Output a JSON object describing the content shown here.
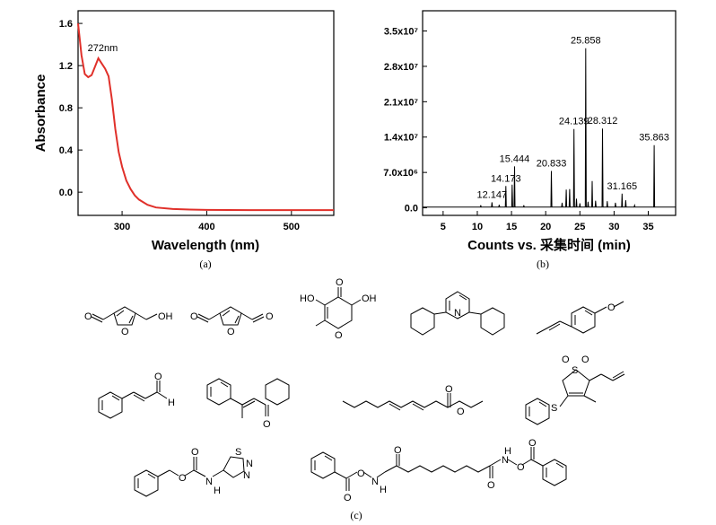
{
  "panel_labels": {
    "a": "(a)",
    "b": "(b)",
    "c": "(c)"
  },
  "chart_data": [
    {
      "type": "line",
      "title": "",
      "xlabel": "Wavelength (nm)",
      "ylabel": "Absorbance",
      "xlim": [
        248,
        550
      ],
      "ylim": [
        -0.22,
        1.72
      ],
      "x_ticks": [
        300,
        400,
        500
      ],
      "y_ticks": [
        0.0,
        0.4,
        0.8,
        1.2,
        1.6
      ],
      "y_tick_labels": [
        "0.0",
        "0.4",
        "0.8",
        "1.2",
        "1.6"
      ],
      "line_color": "#e0302a",
      "annotations": [
        {
          "text": "272nm",
          "x": 272,
          "y": 1.27
        }
      ],
      "series": [
        {
          "x": [
            248,
            252,
            256,
            260,
            264,
            268,
            272,
            276,
            280,
            284,
            288,
            292,
            296,
            300,
            305,
            310,
            315,
            320,
            330,
            340,
            360,
            380,
            400,
            450,
            500,
            550
          ],
          "values": [
            1.6,
            1.3,
            1.12,
            1.09,
            1.11,
            1.19,
            1.27,
            1.22,
            1.17,
            1.1,
            0.88,
            0.6,
            0.38,
            0.24,
            0.11,
            0.03,
            -0.03,
            -0.07,
            -0.12,
            -0.145,
            -0.16,
            -0.165,
            -0.168,
            -0.17,
            -0.17,
            -0.17
          ]
        }
      ]
    },
    {
      "type": "line",
      "title": "",
      "xlabel": "Counts vs. 采集时间 (min)",
      "ylabel": "",
      "xlim": [
        2,
        39
      ],
      "ylim": [
        -1500000,
        39000000
      ],
      "x_ticks": [
        5,
        10,
        15,
        20,
        25,
        30,
        35
      ],
      "y_ticks": [
        0,
        7000000,
        14000000,
        21000000,
        28000000,
        35000000
      ],
      "y_tick_labels": [
        "0.0",
        "7.0x10⁶",
        "1.4x10⁷",
        "2.1x10⁷",
        "2.8x10⁷",
        "3.5x10⁷"
      ],
      "peaks": [
        {
          "x": 10.5,
          "y": 500000,
          "label": ""
        },
        {
          "x": 12.147,
          "y": 1100000,
          "label": "12.147"
        },
        {
          "x": 13.2,
          "y": 600000,
          "label": ""
        },
        {
          "x": 14.173,
          "y": 4300000,
          "label": "14.173"
        },
        {
          "x": 15.1,
          "y": 4600000,
          "label": ""
        },
        {
          "x": 15.444,
          "y": 8200000,
          "label": "15.444"
        },
        {
          "x": 16.8,
          "y": 500000,
          "label": ""
        },
        {
          "x": 20.833,
          "y": 7300000,
          "label": "20.833"
        },
        {
          "x": 22.4,
          "y": 1000000,
          "label": ""
        },
        {
          "x": 23.0,
          "y": 3600000,
          "label": ""
        },
        {
          "x": 23.5,
          "y": 3700000,
          "label": ""
        },
        {
          "x": 24.139,
          "y": 15600000,
          "label": "24.139"
        },
        {
          "x": 24.5,
          "y": 1800000,
          "label": ""
        },
        {
          "x": 25.0,
          "y": 900000,
          "label": ""
        },
        {
          "x": 25.858,
          "y": 31600000,
          "label": "25.858"
        },
        {
          "x": 26.2,
          "y": 1200000,
          "label": ""
        },
        {
          "x": 26.8,
          "y": 5300000,
          "label": ""
        },
        {
          "x": 27.3,
          "y": 1400000,
          "label": ""
        },
        {
          "x": 28.312,
          "y": 15700000,
          "label": "28.312"
        },
        {
          "x": 29.0,
          "y": 1300000,
          "label": ""
        },
        {
          "x": 30.2,
          "y": 1000000,
          "label": ""
        },
        {
          "x": 31.165,
          "y": 2800000,
          "label": "31.165"
        },
        {
          "x": 31.7,
          "y": 1500000,
          "label": ""
        },
        {
          "x": 33.0,
          "y": 500000,
          "label": ""
        },
        {
          "x": 35.863,
          "y": 12400000,
          "label": "35.863"
        }
      ]
    }
  ],
  "molecule_atoms": {
    "o": "O",
    "oh": "OH",
    "ho": "HO",
    "n": "N",
    "h": "H",
    "s": "S",
    "nh": "H",
    "hn": "H"
  }
}
